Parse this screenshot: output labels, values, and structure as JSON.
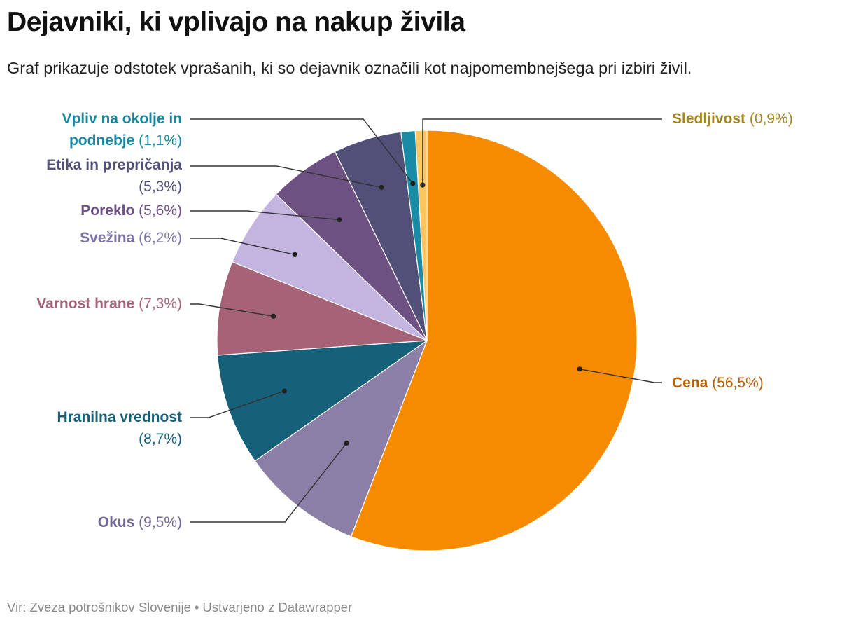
{
  "title": "Dejavniki, ki vplivajo na nakup živila",
  "subtitle": "Graf prikazuje odstotek vprašanih, ki so dejavnik označili kot najpomembnejšega pri izbiri živil.",
  "footer": {
    "source": "Vir: Zveza potrošnikov Slovenije",
    "separator": "•",
    "credit": "Ustvarjeno z Datawrapper"
  },
  "chart_data": {
    "type": "pie",
    "title": "Dejavniki, ki vplivajo na nakup živila",
    "unit": "%",
    "slices": [
      {
        "name": "Cena",
        "value": 56.5,
        "label": "(56,5%)",
        "color": "#f68b00",
        "text_color": "#b85f00"
      },
      {
        "name": "Okus",
        "value": 9.5,
        "label": "(9,5%)",
        "color": "#8b7fa7",
        "text_color": "#746896"
      },
      {
        "name": "Hranilna vrednost",
        "value": 8.7,
        "label": "(8,7%)",
        "color": "#17607a",
        "text_color": "#17607a"
      },
      {
        "name": "Varnost hrane",
        "value": 7.3,
        "label": "(7,3%)",
        "color": "#a66378",
        "text_color": "#a66378"
      },
      {
        "name": "Svežina",
        "value": 6.2,
        "label": "(6,2%)",
        "color": "#c3b5e0",
        "text_color": "#7e72a5"
      },
      {
        "name": "Poreklo",
        "value": 5.6,
        "label": "(5,6%)",
        "color": "#6e5183",
        "text_color": "#6e5183"
      },
      {
        "name": "Etika in prepričanja",
        "value": 5.3,
        "label": "(5,3%)",
        "color": "#505079",
        "text_color": "#505079"
      },
      {
        "name": "Vpliv na okolje in podnebje",
        "value": 1.1,
        "label": "(1,1%)",
        "color": "#1a8ba5",
        "text_color": "#1a86a1"
      },
      {
        "name": "Sledljivost",
        "value": 0.9,
        "label": "(0,9%)",
        "color": "#fbc55f",
        "text_color": "#a3861f"
      }
    ]
  }
}
